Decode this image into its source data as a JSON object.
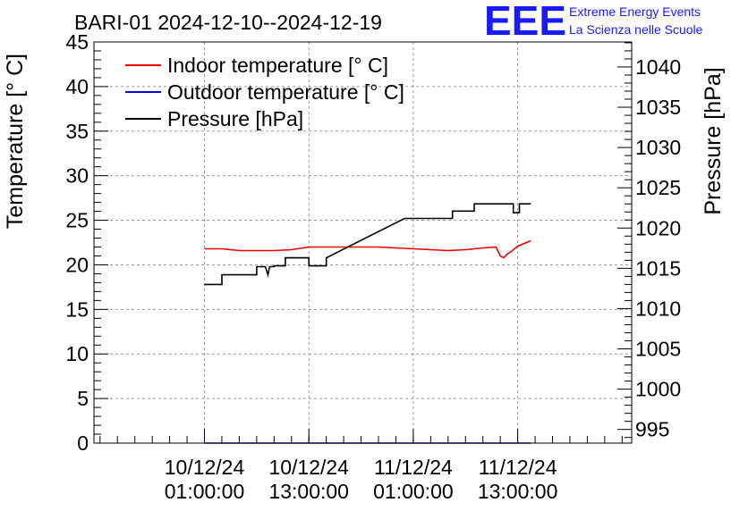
{
  "header": {
    "title": "BARI-01 2024-12-10--2024-12-19",
    "logo_text": "EEE",
    "brand_line1": "Extreme Energy Events",
    "brand_line2": "La Scienza nelle Scuole",
    "brand_color": "#1a1aff"
  },
  "chart_data": {
    "type": "line",
    "title": "BARI-01 2024-12-10--2024-12-19",
    "xlabel": "",
    "ylabel": "Temperature [° C]",
    "y2label": "Pressure [hPa]",
    "x_units": "hours since 10/12/24 00:00",
    "xlim": [
      -11.7,
      50.1
    ],
    "ylim": [
      0,
      45
    ],
    "y2lim": [
      993.3,
      1043.1
    ],
    "x_ticks": [
      {
        "x": 1,
        "line1": "10/12/24",
        "line2": "01:00:00"
      },
      {
        "x": 13,
        "line1": "10/12/24",
        "line2": "13:00:00"
      },
      {
        "x": 25,
        "line1": "11/12/24",
        "line2": "01:00:00"
      },
      {
        "x": 37,
        "line1": "11/12/24",
        "line2": "13:00:00"
      }
    ],
    "y_ticks": [
      0,
      5,
      10,
      15,
      20,
      25,
      30,
      35,
      40,
      45
    ],
    "y2_ticks": [
      995,
      1000,
      1005,
      1010,
      1015,
      1020,
      1025,
      1030,
      1035,
      1040
    ],
    "grid": true,
    "legend": "top-left",
    "series": [
      {
        "name": "Indoor temperature [° C]",
        "axis": "left",
        "color": "#ee0000",
        "x": [
          1,
          3,
          5,
          7,
          9,
          11,
          13,
          15,
          17,
          19,
          21,
          23,
          25,
          27,
          29,
          31,
          33,
          34.5,
          35,
          35.4,
          35.8,
          36.4,
          37,
          38.5
        ],
        "y": [
          21.8,
          21.8,
          21.6,
          21.6,
          21.6,
          21.7,
          22.0,
          22.0,
          22.0,
          22.0,
          22.0,
          21.9,
          21.8,
          21.7,
          21.6,
          21.7,
          21.9,
          22.0,
          21.0,
          20.8,
          21.2,
          21.6,
          22.1,
          22.7
        ]
      },
      {
        "name": "Outdoor temperature [° C]",
        "axis": "left",
        "color": "#0000ee",
        "x": [
          1,
          38.5
        ],
        "y": [
          0,
          0
        ]
      },
      {
        "name": "Pressure [hPa]",
        "axis": "right",
        "color": "#000000",
        "x": [
          1,
          3,
          3,
          7,
          7,
          8,
          8.3,
          8.5,
          9,
          9,
          10.3,
          10.3,
          13,
          13,
          15,
          15,
          24,
          24,
          29.5,
          29.5,
          32,
          32,
          36.5,
          36.5,
          37.2,
          37.2,
          38.5
        ],
        "y": [
          1013,
          1013,
          1014.2,
          1014.2,
          1015.2,
          1015.2,
          1014.2,
          1015.2,
          1015.2,
          1015.3,
          1015.3,
          1016.3,
          1016.3,
          1015.3,
          1015.3,
          1016.3,
          1021.2,
          1021.2,
          1021.2,
          1022.1,
          1022.1,
          1023.0,
          1023.0,
          1021.9,
          1021.9,
          1023.0,
          1023.0
        ]
      }
    ]
  }
}
